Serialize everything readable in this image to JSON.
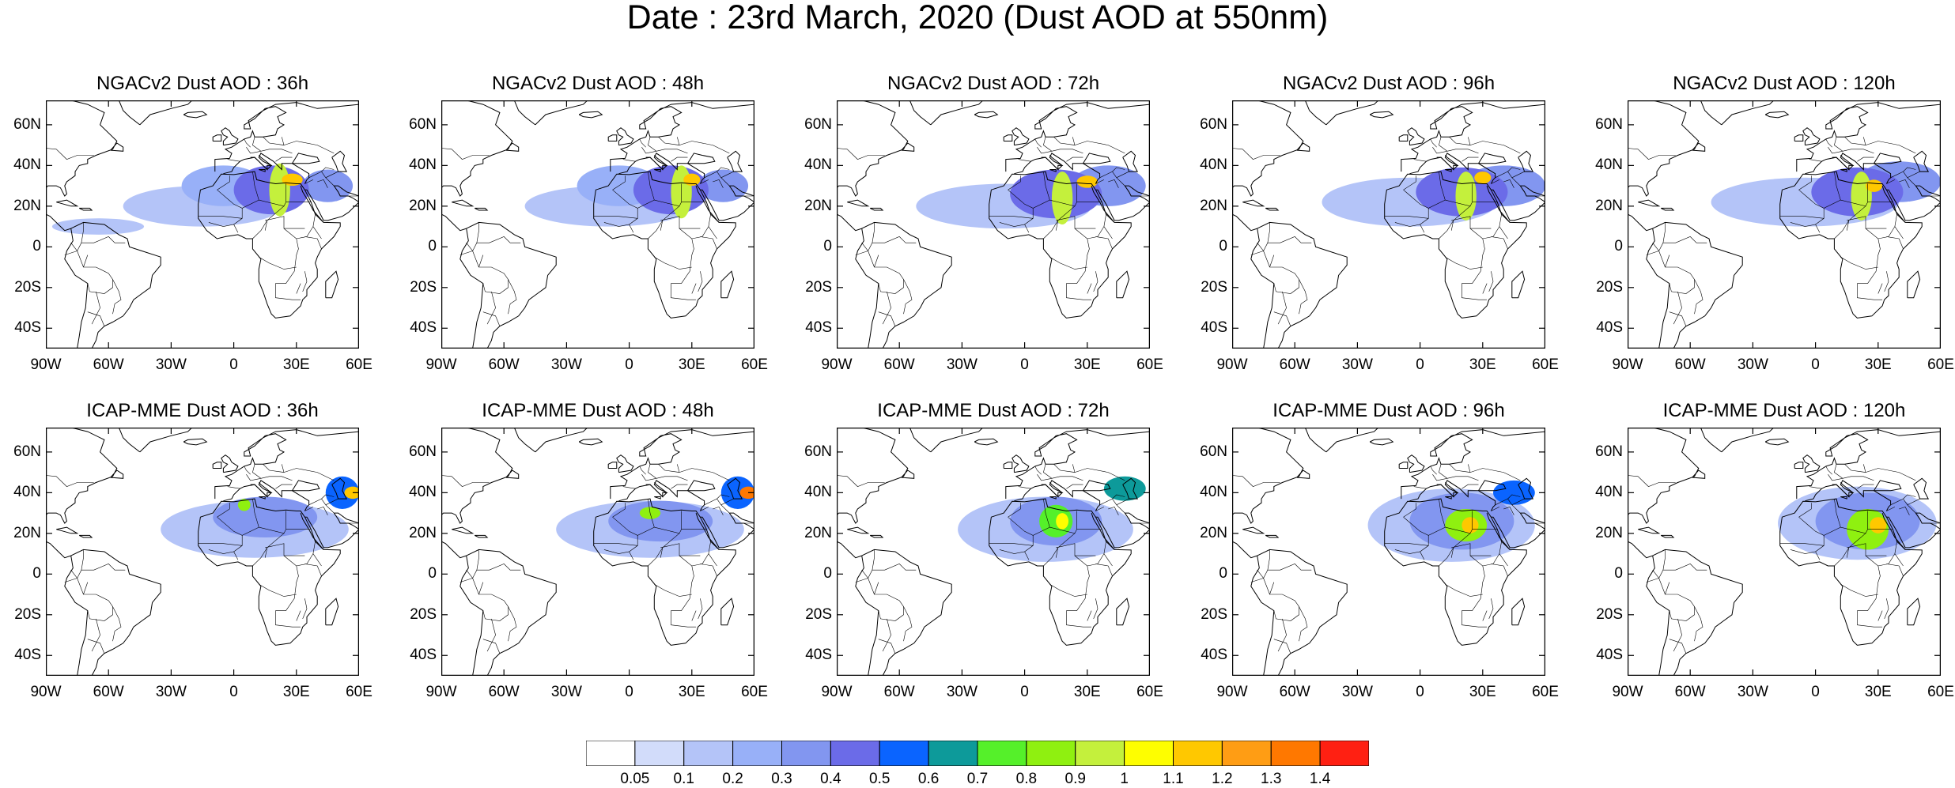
{
  "title": "Date : 23rd March, 2020 (Dust AOD at 550nm)",
  "axes": {
    "lat_ticks": [
      "60N",
      "40N",
      "20N",
      "0",
      "20S",
      "40S"
    ],
    "lat_values": [
      60,
      40,
      20,
      0,
      -20,
      -40
    ],
    "lon_ticks": [
      "90W",
      "60W",
      "30W",
      "0",
      "30E",
      "60E"
    ],
    "lon_values": [
      -90,
      -60,
      -30,
      0,
      30,
      60
    ],
    "lon_range": [
      -90,
      60
    ],
    "lat_range": [
      -50,
      72
    ]
  },
  "panels": [
    {
      "model": "NGACv2",
      "lead": "36h",
      "title": "NGACv2 Dust AOD : 36h",
      "plumes": [
        {
          "lon": -15,
          "lat": 20,
          "rx": 38,
          "ry": 10,
          "level": 0.15
        },
        {
          "lon": 18,
          "lat": 28,
          "rx": 18,
          "ry": 12,
          "level": 0.4
        },
        {
          "lon": 22,
          "lat": 28,
          "rx": 5,
          "ry": 13,
          "level": 0.9
        },
        {
          "lon": 28,
          "lat": 33,
          "rx": 5,
          "ry": 3,
          "level": 1.1
        },
        {
          "lon": -5,
          "lat": 30,
          "rx": 20,
          "ry": 10,
          "level": 0.25
        },
        {
          "lon": 45,
          "lat": 30,
          "rx": 12,
          "ry": 8,
          "level": 0.3
        },
        {
          "lon": -65,
          "lat": 10,
          "rx": 22,
          "ry": 4,
          "level": 0.1
        }
      ]
    },
    {
      "model": "NGACv2",
      "lead": "48h",
      "title": "NGACv2 Dust AOD : 48h",
      "plumes": [
        {
          "lon": -10,
          "lat": 20,
          "rx": 40,
          "ry": 10,
          "level": 0.15
        },
        {
          "lon": 20,
          "lat": 28,
          "rx": 18,
          "ry": 12,
          "level": 0.4
        },
        {
          "lon": 25,
          "lat": 27,
          "rx": 5,
          "ry": 13,
          "level": 0.9
        },
        {
          "lon": 30,
          "lat": 33,
          "rx": 4,
          "ry": 3,
          "level": 1.1
        },
        {
          "lon": -5,
          "lat": 30,
          "rx": 20,
          "ry": 10,
          "level": 0.25
        },
        {
          "lon": 45,
          "lat": 30,
          "rx": 12,
          "ry": 8,
          "level": 0.3
        }
      ]
    },
    {
      "model": "NGACv2",
      "lead": "72h",
      "title": "NGACv2 Dust AOD : 72h",
      "plumes": [
        {
          "lon": -10,
          "lat": 20,
          "rx": 42,
          "ry": 11,
          "level": 0.15
        },
        {
          "lon": 15,
          "lat": 26,
          "rx": 22,
          "ry": 12,
          "level": 0.4
        },
        {
          "lon": 18,
          "lat": 24,
          "rx": 5,
          "ry": 13,
          "level": 0.9
        },
        {
          "lon": 30,
          "lat": 32,
          "rx": 5,
          "ry": 3,
          "level": 1.1
        },
        {
          "lon": 40,
          "lat": 30,
          "rx": 18,
          "ry": 10,
          "level": 0.3
        }
      ]
    },
    {
      "model": "NGACv2",
      "lead": "96h",
      "title": "NGACv2 Dust AOD : 96h",
      "plumes": [
        {
          "lon": -5,
          "lat": 22,
          "rx": 42,
          "ry": 12,
          "level": 0.15
        },
        {
          "lon": 20,
          "lat": 27,
          "rx": 22,
          "ry": 12,
          "level": 0.4
        },
        {
          "lon": 22,
          "lat": 25,
          "rx": 5,
          "ry": 12,
          "level": 0.9
        },
        {
          "lon": 30,
          "lat": 34,
          "rx": 4,
          "ry": 3,
          "level": 1.1
        },
        {
          "lon": 40,
          "lat": 30,
          "rx": 20,
          "ry": 10,
          "level": 0.3
        }
      ]
    },
    {
      "model": "NGACv2",
      "lead": "120h",
      "title": "NGACv2 Dust AOD : 120h",
      "plumes": [
        {
          "lon": -5,
          "lat": 22,
          "rx": 45,
          "ry": 12,
          "level": 0.15
        },
        {
          "lon": 20,
          "lat": 27,
          "rx": 22,
          "ry": 12,
          "level": 0.4
        },
        {
          "lon": 22,
          "lat": 25,
          "rx": 5,
          "ry": 12,
          "level": 0.9
        },
        {
          "lon": 28,
          "lat": 30,
          "rx": 4,
          "ry": 3,
          "level": 1.1
        },
        {
          "lon": 40,
          "lat": 32,
          "rx": 20,
          "ry": 10,
          "level": 0.3
        }
      ]
    },
    {
      "model": "ICAP-MME",
      "lead": "36h",
      "title": "ICAP-MME Dust AOD : 36h",
      "plumes": [
        {
          "lon": 10,
          "lat": 22,
          "rx": 45,
          "ry": 14,
          "level": 0.15
        },
        {
          "lon": 15,
          "lat": 28,
          "rx": 25,
          "ry": 10,
          "level": 0.3
        },
        {
          "lon": 5,
          "lat": 34,
          "rx": 3,
          "ry": 3,
          "level": 0.8
        },
        {
          "lon": 52,
          "lat": 40,
          "rx": 8,
          "ry": 8,
          "level": 0.5
        },
        {
          "lon": 57,
          "lat": 40,
          "rx": 4,
          "ry": 3,
          "level": 1.1
        }
      ]
    },
    {
      "model": "ICAP-MME",
      "lead": "48h",
      "title": "ICAP-MME Dust AOD : 48h",
      "plumes": [
        {
          "lon": 10,
          "lat": 22,
          "rx": 45,
          "ry": 14,
          "level": 0.15
        },
        {
          "lon": 15,
          "lat": 26,
          "rx": 25,
          "ry": 10,
          "level": 0.3
        },
        {
          "lon": 10,
          "lat": 30,
          "rx": 5,
          "ry": 3,
          "level": 0.8
        },
        {
          "lon": 52,
          "lat": 40,
          "rx": 8,
          "ry": 8,
          "level": 0.5
        },
        {
          "lon": 57,
          "lat": 40,
          "rx": 4,
          "ry": 3,
          "level": 1.3
        }
      ]
    },
    {
      "model": "ICAP-MME",
      "lead": "72h",
      "title": "ICAP-MME Dust AOD : 72h",
      "plumes": [
        {
          "lon": 10,
          "lat": 22,
          "rx": 42,
          "ry": 16,
          "level": 0.15
        },
        {
          "lon": 15,
          "lat": 26,
          "rx": 22,
          "ry": 12,
          "level": 0.3
        },
        {
          "lon": 15,
          "lat": 26,
          "rx": 8,
          "ry": 8,
          "level": 0.7
        },
        {
          "lon": 18,
          "lat": 26,
          "rx": 3,
          "ry": 4,
          "level": 1.0
        },
        {
          "lon": 48,
          "lat": 42,
          "rx": 10,
          "ry": 6,
          "level": 0.6
        }
      ]
    },
    {
      "model": "ICAP-MME",
      "lead": "96h",
      "title": "ICAP-MME Dust AOD : 96h",
      "plumes": [
        {
          "lon": 15,
          "lat": 24,
          "rx": 40,
          "ry": 18,
          "level": 0.15
        },
        {
          "lon": 20,
          "lat": 26,
          "rx": 25,
          "ry": 14,
          "level": 0.3
        },
        {
          "lon": 22,
          "lat": 24,
          "rx": 10,
          "ry": 8,
          "level": 0.8
        },
        {
          "lon": 24,
          "lat": 24,
          "rx": 4,
          "ry": 4,
          "level": 1.1
        },
        {
          "lon": 45,
          "lat": 40,
          "rx": 10,
          "ry": 6,
          "level": 0.5
        }
      ]
    },
    {
      "model": "ICAP-MME",
      "lead": "120h",
      "title": "ICAP-MME Dust AOD : 120h",
      "plumes": [
        {
          "lon": 20,
          "lat": 25,
          "rx": 38,
          "ry": 18,
          "level": 0.15
        },
        {
          "lon": 25,
          "lat": 26,
          "rx": 25,
          "ry": 14,
          "level": 0.3
        },
        {
          "lon": 25,
          "lat": 22,
          "rx": 10,
          "ry": 10,
          "level": 0.8
        },
        {
          "lon": 30,
          "lat": 24,
          "rx": 4,
          "ry": 4,
          "level": 1.1
        }
      ]
    }
  ],
  "colorbar": {
    "colors": [
      "#ffffff",
      "#d2dcfa",
      "#b4c4f8",
      "#98b0f8",
      "#8296f0",
      "#6b6be8",
      "#0a64ff",
      "#0d9a9a",
      "#55f02a",
      "#8ff010",
      "#c4f03c",
      "#fefe00",
      "#ffc800",
      "#ff9d14",
      "#ff7800",
      "#ff2012"
    ],
    "labels": [
      "0.05",
      "0.1",
      "0.2",
      "0.3",
      "0.4",
      "0.5",
      "0.6",
      "0.7",
      "0.8",
      "0.9",
      "1",
      "1.1",
      "1.2",
      "1.3",
      "1.4"
    ],
    "levels": [
      0.05,
      0.1,
      0.2,
      0.3,
      0.4,
      0.5,
      0.6,
      0.7,
      0.8,
      0.9,
      1.0,
      1.1,
      1.2,
      1.3,
      1.4
    ]
  }
}
